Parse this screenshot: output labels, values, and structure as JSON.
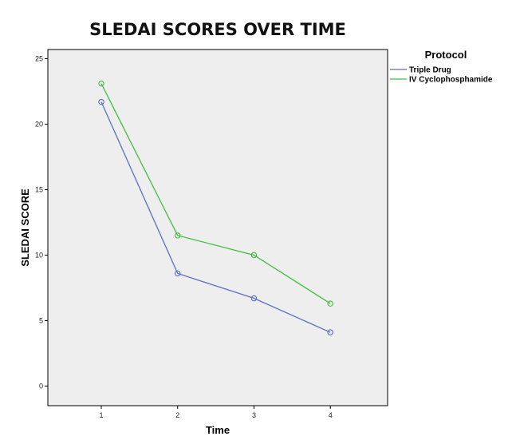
{
  "chart_data": {
    "type": "line",
    "title": "SLEDAI SCORES OVER TIME",
    "xlabel": "Time",
    "ylabel": "SLEDAI SCORE",
    "x": [
      1,
      2,
      3,
      4
    ],
    "x_ticks": [
      "1",
      "2",
      "3",
      "4"
    ],
    "xlim": [
      0.3,
      4.75
    ],
    "ylim": [
      -1.5,
      25.7
    ],
    "y_ticks": [
      0,
      5,
      10,
      15,
      20,
      25
    ],
    "grid": false,
    "legend_position": "right",
    "legend_title": "Protocol",
    "series": [
      {
        "name": "Triple Drug",
        "values": [
          21.7,
          8.6,
          6.7,
          4.1
        ],
        "color": "#5a6fc4"
      },
      {
        "name": "IV Cyclophosphamide",
        "values": [
          23.1,
          11.5,
          10.0,
          6.3
        ],
        "color": "#3fbf3f"
      }
    ],
    "colors": {
      "plot_background": "#eeeeee",
      "axis": "#000000"
    }
  }
}
